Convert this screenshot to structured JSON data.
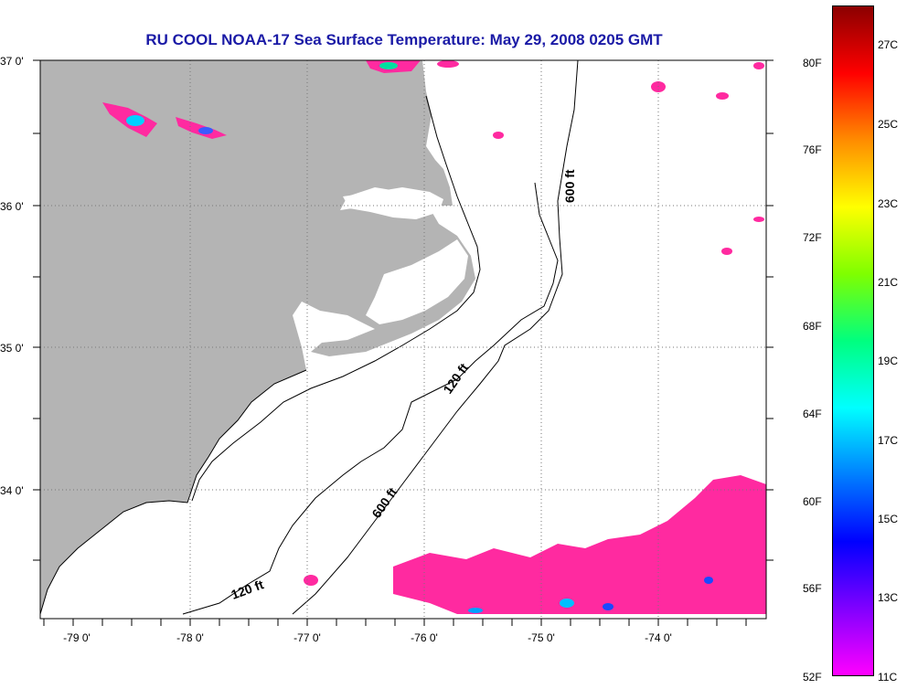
{
  "title": "RU COOL  NOAA-17  Sea Surface Temperature:  May 29, 2008 0205 GMT",
  "lat_labels": [
    "37 0'",
    "36 0'",
    "35 0'",
    "34 0'"
  ],
  "lon_labels": [
    "-79 0'",
    "-78 0'",
    "-77 0'",
    "-76 0'",
    "-75 0'",
    "-74 0'"
  ],
  "contour_labels": [
    "600 ft",
    "120 ft",
    "600 ft",
    "120 ft"
  ],
  "colorbar": {
    "fahrenheit": [
      "80F",
      "76F",
      "72F",
      "68F",
      "64F",
      "60F",
      "56F",
      "52F"
    ],
    "celsius": [
      "27C",
      "25C",
      "23C",
      "21C",
      "19C",
      "17C",
      "15C",
      "13C",
      "11C"
    ],
    "colors": [
      "#8b0000",
      "#ff0000",
      "#ff8c00",
      "#ffff00",
      "#7fff00",
      "#00ff7f",
      "#00ffff",
      "#0080ff",
      "#0000ff",
      "#8000ff",
      "#ff00ff"
    ]
  },
  "colors": {
    "land": "#b4b4b4",
    "title": "#1a1aa6",
    "cloud_sst": "#ff2aa0",
    "water": "#ffffff"
  }
}
